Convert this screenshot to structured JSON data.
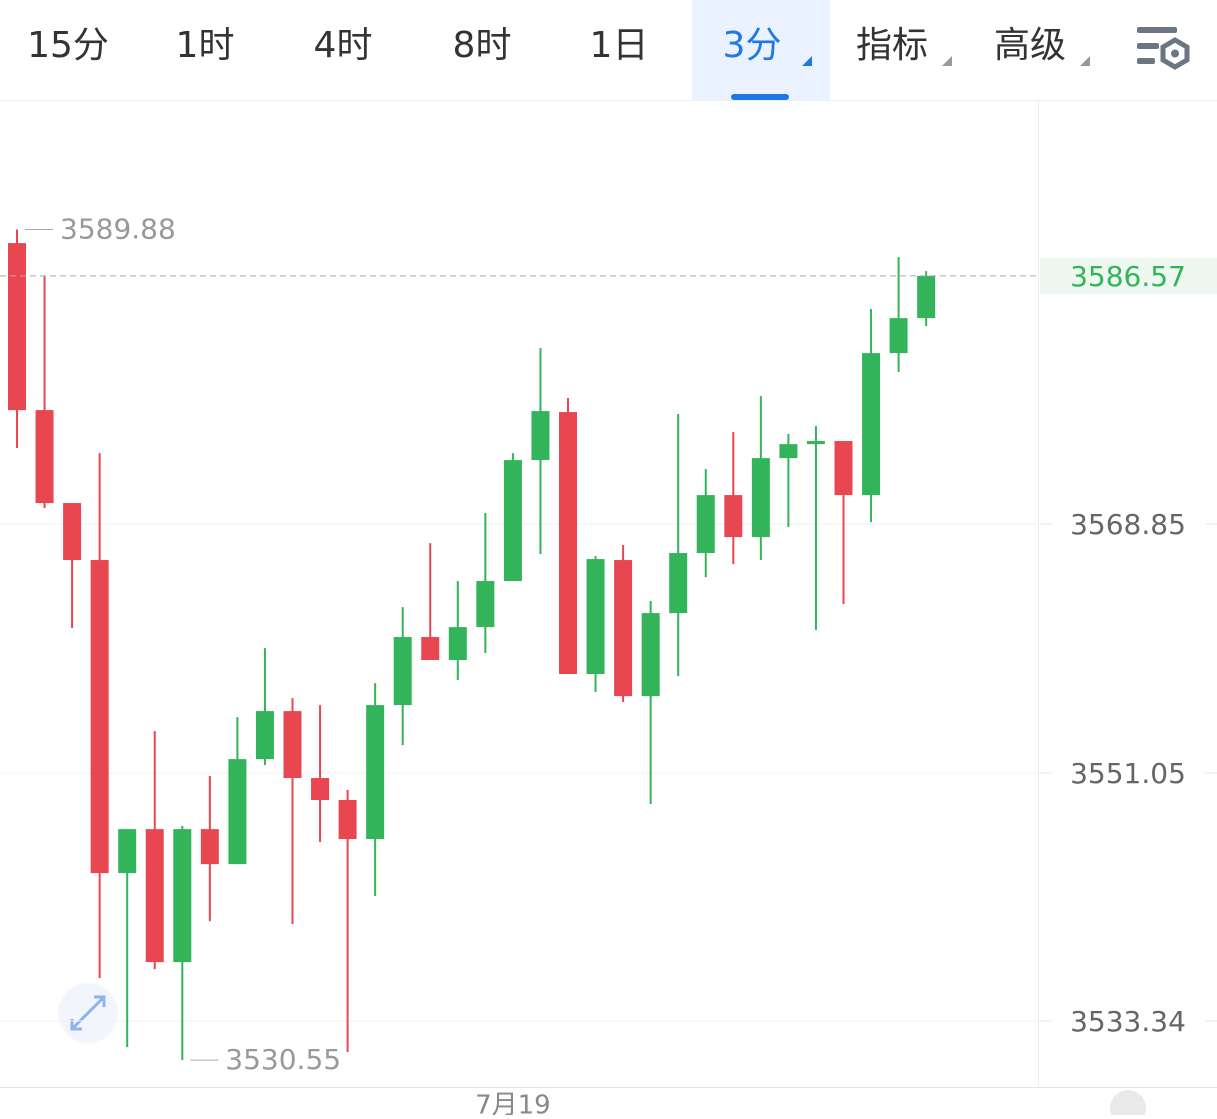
{
  "header": {
    "tabs": [
      {
        "label": "15分"
      },
      {
        "label": "1时"
      },
      {
        "label": "4时"
      },
      {
        "label": "8时"
      },
      {
        "label": "1日"
      },
      {
        "label": "3分",
        "active": true,
        "dropdown": true
      },
      {
        "label": "指标",
        "dropdown": true
      },
      {
        "label": "高级",
        "dropdown": true
      }
    ]
  },
  "chart_data": {
    "type": "candlestick",
    "categories": [
      null,
      null,
      null,
      null,
      null,
      null,
      null,
      null,
      null,
      null,
      null,
      null,
      null,
      null,
      null,
      null,
      null,
      null,
      "7月19",
      null,
      null,
      null,
      null,
      null,
      null,
      null,
      null,
      null,
      null,
      null,
      null,
      null,
      null,
      null
    ],
    "open": [
      3588.91,
      3576.98,
      3570.34,
      3566.27,
      3543.91,
      3547.05,
      3537.55,
      3547.05,
      3544.55,
      3552.05,
      3555.48,
      3550.7,
      3549.13,
      3546.34,
      3555.91,
      3560.77,
      3559.13,
      3561.48,
      3564.77,
      3573.41,
      3576.84,
      3558.13,
      3566.27,
      3556.55,
      3562.48,
      3566.77,
      3570.91,
      3567.91,
      3573.55,
      3574.55,
      3574.77,
      3570.91,
      3581.05,
      3583.55
    ],
    "high": [
      3589.88,
      3586.55,
      3570.34,
      3573.91,
      3547.05,
      3554.05,
      3547.27,
      3550.84,
      3555.05,
      3559.98,
      3556.41,
      3555.91,
      3549.84,
      3557.48,
      3562.91,
      3567.48,
      3564.77,
      3569.63,
      3573.91,
      3581.41,
      3577.84,
      3566.55,
      3567.34,
      3563.34,
      3576.7,
      3572.77,
      3575.41,
      3577.98,
      3575.27,
      3575.84,
      3574.77,
      3584.2,
      3587.91,
      3586.91
    ],
    "low": [
      3574.27,
      3569.98,
      3561.41,
      3536.41,
      3531.48,
      3537.05,
      3530.55,
      3540.48,
      3544.55,
      3551.63,
      3540.27,
      3546.13,
      3531.13,
      3542.27,
      3553.05,
      3559.13,
      3557.7,
      3559.63,
      3564.77,
      3566.7,
      3558.13,
      3556.84,
      3556.13,
      3548.84,
      3557.98,
      3565.05,
      3565.98,
      3566.27,
      3568.63,
      3561.27,
      3563.13,
      3568.98,
      3579.7,
      3582.98
    ],
    "close": [
      3576.98,
      3570.34,
      3566.27,
      3543.91,
      3547.05,
      3537.55,
      3547.05,
      3544.55,
      3552.05,
      3555.48,
      3550.7,
      3549.13,
      3546.34,
      3555.91,
      3560.77,
      3559.13,
      3561.48,
      3564.77,
      3573.41,
      3576.91,
      3558.13,
      3566.34,
      3556.55,
      3562.48,
      3566.77,
      3570.91,
      3567.91,
      3573.55,
      3574.55,
      3574.77,
      3570.91,
      3581.05,
      3583.55,
      3586.57
    ],
    "up_color": "#34b45a",
    "down_color": "#e84752",
    "ylim": [
      3528.63,
      3599.13
    ],
    "yticks": [
      3533.34,
      3551.05,
      3568.85
    ],
    "grid": true,
    "annotations": {
      "high": 3589.88,
      "low": 3530.55,
      "last": 3586.57
    }
  }
}
